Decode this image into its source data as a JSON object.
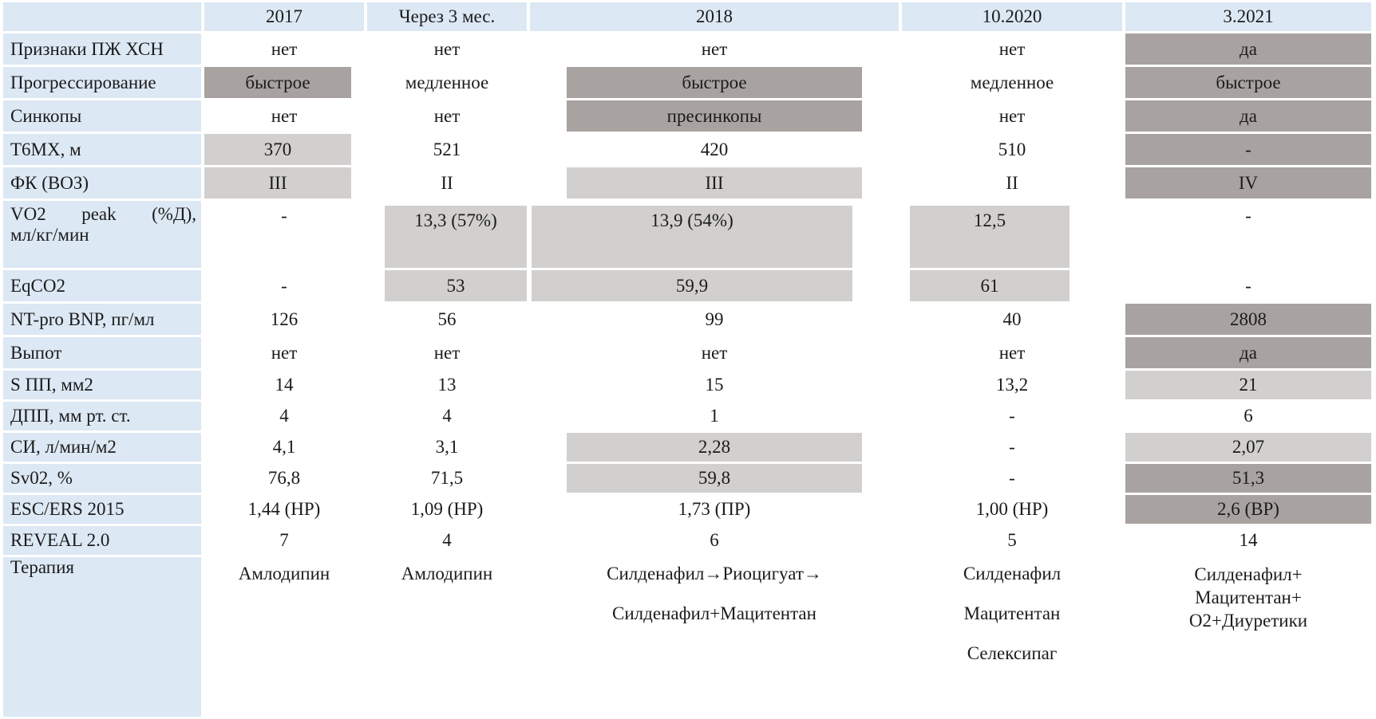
{
  "colors": {
    "header_blue": "#dce8f4",
    "highlight_dark": "#a8a3a0",
    "highlight_light": "#d2d0ce",
    "text": "#1b1b1b"
  },
  "table": {
    "columns": [
      "",
      "2017",
      "Через 3 мес.",
      "2018",
      "10.2020",
      "3.2021"
    ],
    "rows": [
      {
        "label": "Признаки ПЖ ХСН",
        "kind": "std",
        "cells": [
          {
            "text": "нет"
          },
          {
            "text": "нет"
          },
          {
            "text": "нет"
          },
          {
            "text": "нет"
          },
          {
            "text": "да",
            "hl": "dark"
          }
        ]
      },
      {
        "label": "Прогрессирование",
        "kind": "std",
        "cells": [
          {
            "text": "быстрое",
            "hl": "dark"
          },
          {
            "text": "медленное"
          },
          {
            "text": "быстрое",
            "hl": "dark"
          },
          {
            "text": "медленное"
          },
          {
            "text": "быстрое",
            "hl": "dark"
          }
        ]
      },
      {
        "label": "Синкопы",
        "kind": "std",
        "cells": [
          {
            "text": "нет"
          },
          {
            "text": "нет"
          },
          {
            "text": "пресинкопы",
            "hl": "dark"
          },
          {
            "text": "нет"
          },
          {
            "text": "да",
            "hl": "dark"
          }
        ]
      },
      {
        "label": "Т6МХ, м",
        "kind": "std",
        "cells": [
          {
            "text": "370",
            "hl": "light"
          },
          {
            "text": "521"
          },
          {
            "text": "420"
          },
          {
            "text": "510"
          },
          {
            "text": "-",
            "hl": "dark"
          }
        ]
      },
      {
        "label": "ФК (ВОЗ)",
        "kind": "std",
        "cells": [
          {
            "text": "III",
            "hl": "light"
          },
          {
            "text": "II"
          },
          {
            "text": "III",
            "hl": "light"
          },
          {
            "text": "II"
          },
          {
            "text": "IV",
            "hl": "dark"
          }
        ]
      },
      {
        "label": "VO2 peak (%Д), мл/кг/мин",
        "kind": "vo2",
        "label_justified_parts": [
          "VO2",
          "peak",
          "(%Д),"
        ],
        "label_second_line": "мл/кг/мин",
        "cells": [
          {
            "text": "-"
          },
          {
            "text": "13,3 (57%)",
            "hl": "light"
          },
          {
            "text": "13,9 (54%)",
            "hl": "light"
          },
          {
            "text": "12,5",
            "hl": "light"
          },
          {
            "text": "-"
          }
        ]
      },
      {
        "label": "EqCO2",
        "kind": "eq",
        "cells": [
          {
            "text": "-"
          },
          {
            "text": "53",
            "hl": "light"
          },
          {
            "text": "59,9",
            "hl": "light"
          },
          {
            "text": "61",
            "hl": "light"
          },
          {
            "text": "-"
          }
        ]
      },
      {
        "label": "NT-pro BNP, пг/мл",
        "kind": "std",
        "cells": [
          {
            "text": "126"
          },
          {
            "text": "56"
          },
          {
            "text": "99"
          },
          {
            "text": "40"
          },
          {
            "text": "2808",
            "hl": "dark"
          }
        ]
      },
      {
        "label": "Выпот",
        "kind": "std",
        "cells": [
          {
            "text": "нет"
          },
          {
            "text": "нет"
          },
          {
            "text": "нет"
          },
          {
            "text": "нет"
          },
          {
            "text": "да",
            "hl": "dark"
          }
        ]
      },
      {
        "label": "S ПП, мм2",
        "kind": "thin",
        "cells": [
          {
            "text": "14"
          },
          {
            "text": "13"
          },
          {
            "text": "15"
          },
          {
            "text": "13,2"
          },
          {
            "text": "21",
            "hl": "light"
          }
        ]
      },
      {
        "label": "ДПП, мм рт. ст.",
        "kind": "thin",
        "cells": [
          {
            "text": "4"
          },
          {
            "text": "4"
          },
          {
            "text": "1"
          },
          {
            "text": "-"
          },
          {
            "text": "6"
          }
        ]
      },
      {
        "label": "СИ, л/мин/м2",
        "kind": "thin",
        "cells": [
          {
            "text": "4,1"
          },
          {
            "text": "3,1"
          },
          {
            "text": "2,28",
            "hl": "light"
          },
          {
            "text": "-"
          },
          {
            "text": "2,07",
            "hl": "light"
          }
        ]
      },
      {
        "label": "Sv02, %",
        "kind": "thin",
        "cells": [
          {
            "text": "76,8"
          },
          {
            "text": "71,5"
          },
          {
            "text": "59,8",
            "hl": "light"
          },
          {
            "text": "-"
          },
          {
            "text": "51,3",
            "hl": "dark"
          }
        ]
      },
      {
        "label": "ESC/ERS 2015",
        "kind": "thin",
        "cells": [
          {
            "text": "1,44 (НР)"
          },
          {
            "text": "1,09 (НР)"
          },
          {
            "text": "1,73 (ПР)"
          },
          {
            "text": "1,00 (НР)"
          },
          {
            "text": "2,6 (ВР)",
            "hl": "dark"
          }
        ]
      },
      {
        "label": "REVEAL 2.0",
        "kind": "thin",
        "cells": [
          {
            "text": "7"
          },
          {
            "text": "4"
          },
          {
            "text": "6"
          },
          {
            "text": "5"
          },
          {
            "text": "14"
          }
        ]
      },
      {
        "label": "Терапия",
        "kind": "therapy",
        "cells": [
          {
            "lines": [
              "Амлодипин"
            ],
            "gap": "wide"
          },
          {
            "lines": [
              "Амлодипин"
            ],
            "gap": "wide"
          },
          {
            "lines": [
              "Силденафил→Риоцигуат→",
              "Силденафил+Мацитентан"
            ],
            "gap": "wide"
          },
          {
            "lines": [
              "Силденафил",
              "Мацитентан",
              "Селексипаг"
            ],
            "gap": "wide"
          },
          {
            "lines": [
              "Силденафил+",
              "Мацитентан+",
              "О2+Диуретики"
            ],
            "gap": "tight"
          }
        ]
      }
    ]
  }
}
